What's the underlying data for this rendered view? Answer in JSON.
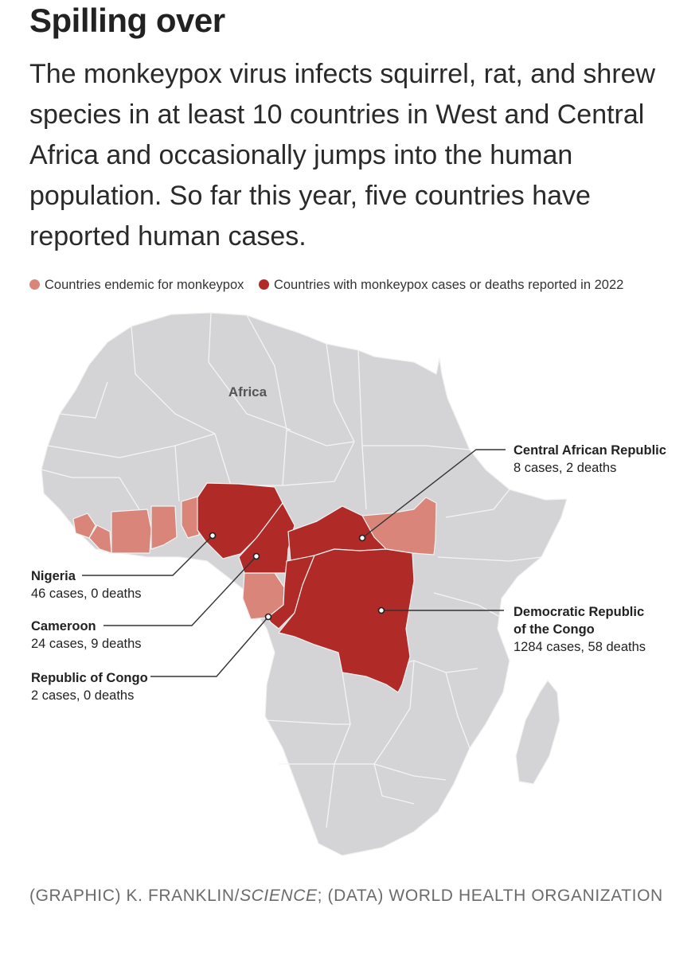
{
  "title": "Spilling over",
  "subtitle": "The monkeypox virus infects squirrel, rat, and shrew species in at least 10 countries in West and Central Africa and occasionally jumps into the human population. So far this year, five countries have reported human cases.",
  "legend": [
    {
      "label": "Countries endemic for monkeypox",
      "color": "#d9857a"
    },
    {
      "label": "Countries with monkeypox cases or deaths reported in 2022",
      "color": "#b02a27"
    }
  ],
  "map_label": "Africa",
  "colors": {
    "land": "#d4d4d6",
    "border": "#f2f2f2",
    "endemic": "#d9857a",
    "reported": "#b02a27"
  },
  "callouts": {
    "car": {
      "name": "Central African Republic",
      "detail": "8 cases, 2 deaths"
    },
    "nigeria": {
      "name": "Nigeria",
      "detail": "46 cases, 0 deaths"
    },
    "cameroon": {
      "name": "Cameroon",
      "detail": "24 cases, 9 deaths"
    },
    "congo": {
      "name": "Republic of Congo",
      "detail": "2 cases, 0 deaths"
    },
    "drc": {
      "name_line1": "Democratic Republic",
      "name_line2": "of the Congo",
      "detail": "1284 cases, 58 deaths"
    }
  },
  "credit": {
    "part1": "(GRAPHIC) K. FRANKLIN/",
    "italic": "SCIENCE",
    "part2": "; (DATA) WORLD HEALTH ORGANIZATION"
  }
}
